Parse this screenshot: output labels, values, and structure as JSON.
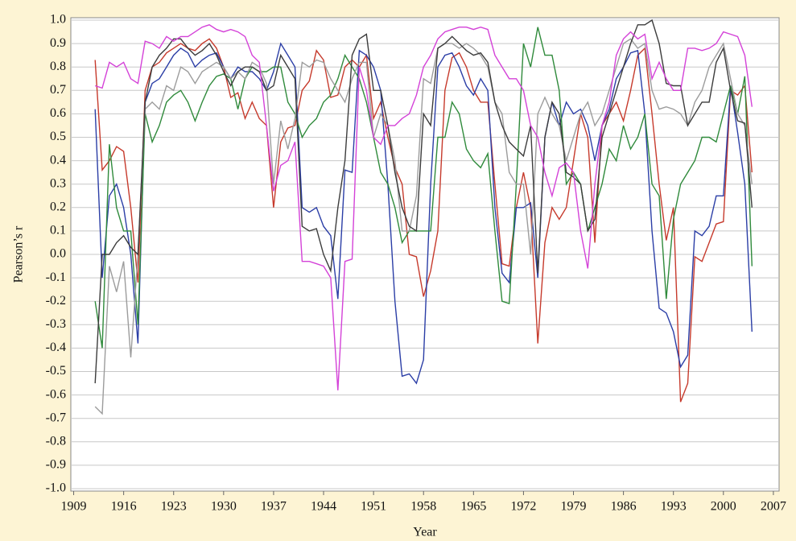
{
  "chart_data": {
    "type": "line",
    "x_label": "Year",
    "y_label": "Pearson’s r",
    "x": [
      1912,
      1913,
      1914,
      1915,
      1916,
      1917,
      1918,
      1919,
      1920,
      1921,
      1922,
      1923,
      1924,
      1925,
      1926,
      1927,
      1928,
      1929,
      1930,
      1931,
      1932,
      1933,
      1934,
      1935,
      1936,
      1937,
      1938,
      1939,
      1940,
      1941,
      1942,
      1943,
      1944,
      1945,
      1946,
      1947,
      1948,
      1949,
      1950,
      1951,
      1952,
      1953,
      1954,
      1955,
      1956,
      1957,
      1958,
      1959,
      1960,
      1961,
      1962,
      1963,
      1964,
      1965,
      1966,
      1967,
      1968,
      1969,
      1970,
      1971,
      1972,
      1973,
      1974,
      1975,
      1976,
      1977,
      1978,
      1979,
      1980,
      1981,
      1982,
      1983,
      1984,
      1985,
      1986,
      1987,
      1988,
      1989,
      1990,
      1991,
      1992,
      1993,
      1994,
      1995,
      1996,
      1997,
      1998,
      1999,
      2000,
      2001,
      2002,
      2003,
      2004
    ],
    "series": [
      {
        "color": "#c63a2c",
        "values": [
          0.83,
          0.36,
          0.4,
          0.46,
          0.44,
          0.2,
          -0.12,
          0.7,
          0.8,
          0.82,
          0.86,
          0.88,
          0.9,
          0.88,
          0.87,
          0.9,
          0.92,
          0.88,
          0.8,
          0.67,
          0.69,
          0.58,
          0.65,
          0.58,
          0.55,
          0.2,
          0.48,
          0.54,
          0.55,
          0.7,
          0.74,
          0.87,
          0.83,
          0.67,
          0.68,
          0.8,
          0.83,
          0.8,
          0.85,
          0.58,
          0.65,
          0.5,
          0.37,
          0.3,
          0.0,
          -0.01,
          -0.18,
          -0.07,
          0.1,
          0.7,
          0.84,
          0.86,
          0.8,
          0.7,
          0.65,
          0.65,
          0.3,
          -0.04,
          -0.05,
          0.2,
          0.35,
          0.2,
          -0.38,
          0.05,
          0.2,
          0.15,
          0.2,
          0.4,
          0.6,
          0.5,
          0.05,
          0.55,
          0.6,
          0.65,
          0.57,
          0.7,
          0.85,
          0.88,
          0.6,
          0.3,
          0.06,
          0.2,
          -0.63,
          -0.55,
          -0.01,
          -0.03,
          0.05,
          0.13,
          0.14,
          0.7,
          0.68,
          0.72,
          0.35
        ]
      },
      {
        "color": "#2b3ea6",
        "values": [
          0.62,
          -0.1,
          0.25,
          0.3,
          0.2,
          0.0,
          -0.38,
          0.65,
          0.73,
          0.75,
          0.8,
          0.85,
          0.88,
          0.86,
          0.8,
          0.83,
          0.85,
          0.86,
          0.8,
          0.75,
          0.8,
          0.78,
          0.78,
          0.75,
          0.7,
          0.78,
          0.9,
          0.85,
          0.8,
          0.2,
          0.18,
          0.2,
          0.12,
          0.08,
          -0.19,
          0.36,
          0.35,
          0.87,
          0.85,
          0.8,
          0.7,
          0.3,
          -0.2,
          -0.52,
          -0.51,
          -0.55,
          -0.45,
          0.3,
          0.8,
          0.85,
          0.86,
          0.8,
          0.72,
          0.68,
          0.75,
          0.7,
          0.2,
          -0.08,
          -0.12,
          0.2,
          0.2,
          0.22,
          -0.1,
          0.5,
          0.65,
          0.55,
          0.65,
          0.6,
          0.62,
          0.55,
          0.4,
          0.55,
          0.62,
          0.75,
          0.8,
          0.86,
          0.87,
          0.6,
          0.1,
          -0.23,
          -0.25,
          -0.33,
          -0.48,
          -0.43,
          0.1,
          0.08,
          0.12,
          0.25,
          0.25,
          0.72,
          0.52,
          0.3,
          -0.33
        ]
      },
      {
        "color": "#2f8a3b",
        "values": [
          -0.2,
          -0.4,
          0.47,
          0.2,
          0.1,
          0.1,
          -0.3,
          0.6,
          0.48,
          0.55,
          0.65,
          0.68,
          0.7,
          0.65,
          0.57,
          0.65,
          0.72,
          0.76,
          0.77,
          0.75,
          0.62,
          0.75,
          0.8,
          0.78,
          0.78,
          0.8,
          0.8,
          0.65,
          0.6,
          0.5,
          0.55,
          0.58,
          0.65,
          0.68,
          0.75,
          0.85,
          0.8,
          0.75,
          0.65,
          0.5,
          0.35,
          0.3,
          0.2,
          0.05,
          0.1,
          0.1,
          0.1,
          0.1,
          0.5,
          0.5,
          0.65,
          0.6,
          0.45,
          0.4,
          0.37,
          0.43,
          0.1,
          -0.2,
          -0.21,
          0.3,
          0.9,
          0.8,
          0.97,
          0.85,
          0.85,
          0.7,
          0.3,
          0.35,
          0.3,
          0.1,
          0.2,
          0.3,
          0.45,
          0.4,
          0.55,
          0.45,
          0.5,
          0.6,
          0.3,
          0.25,
          -0.19,
          0.15,
          0.3,
          0.35,
          0.4,
          0.5,
          0.5,
          0.48,
          0.6,
          0.72,
          0.6,
          0.76,
          -0.05
        ]
      },
      {
        "color": "#9c9c9c",
        "values": [
          -0.65,
          -0.68,
          -0.05,
          -0.16,
          -0.03,
          -0.44,
          0.0,
          0.62,
          0.65,
          0.62,
          0.72,
          0.7,
          0.8,
          0.78,
          0.73,
          0.78,
          0.8,
          0.82,
          0.8,
          0.75,
          0.78,
          0.75,
          0.82,
          0.8,
          0.73,
          0.3,
          0.57,
          0.45,
          0.58,
          0.82,
          0.8,
          0.83,
          0.82,
          0.75,
          0.7,
          0.65,
          0.75,
          0.82,
          0.82,
          0.5,
          0.6,
          0.55,
          0.4,
          0.1,
          0.1,
          0.25,
          0.75,
          0.73,
          0.88,
          0.9,
          0.9,
          0.88,
          0.9,
          0.88,
          0.85,
          0.8,
          0.65,
          0.6,
          0.35,
          0.3,
          0.3,
          0.0,
          0.6,
          0.67,
          0.6,
          0.55,
          0.4,
          0.5,
          0.6,
          0.65,
          0.55,
          0.6,
          0.7,
          0.8,
          0.9,
          0.92,
          0.88,
          0.9,
          0.7,
          0.62,
          0.63,
          0.62,
          0.6,
          0.55,
          0.65,
          0.7,
          0.8,
          0.85,
          0.9,
          0.75,
          0.6,
          0.55,
          0.3
        ]
      },
      {
        "color": "#3c3c3c",
        "values": [
          -0.55,
          0.0,
          0.0,
          0.05,
          0.08,
          0.03,
          0.0,
          0.65,
          0.8,
          0.85,
          0.88,
          0.92,
          0.92,
          0.88,
          0.85,
          0.87,
          0.9,
          0.85,
          0.78,
          0.72,
          0.78,
          0.8,
          0.8,
          0.78,
          0.7,
          0.72,
          0.85,
          0.8,
          0.75,
          0.12,
          0.1,
          0.11,
          0.0,
          -0.07,
          0.2,
          0.4,
          0.85,
          0.92,
          0.94,
          0.7,
          0.7,
          0.55,
          0.35,
          0.2,
          0.12,
          0.1,
          0.6,
          0.55,
          0.88,
          0.9,
          0.93,
          0.9,
          0.87,
          0.85,
          0.86,
          0.82,
          0.65,
          0.55,
          0.48,
          0.45,
          0.42,
          0.55,
          -0.08,
          0.5,
          0.65,
          0.6,
          0.35,
          0.33,
          0.3,
          0.1,
          0.15,
          0.5,
          0.6,
          0.7,
          0.8,
          0.9,
          0.98,
          0.98,
          1.0,
          0.9,
          0.73,
          0.72,
          0.72,
          0.55,
          0.6,
          0.65,
          0.65,
          0.82,
          0.88,
          0.7,
          0.57,
          0.56,
          0.2
        ]
      },
      {
        "color": "#d442d8",
        "values": [
          0.72,
          0.71,
          0.82,
          0.8,
          0.82,
          0.75,
          0.73,
          0.91,
          0.9,
          0.88,
          0.93,
          0.91,
          0.93,
          0.93,
          0.95,
          0.97,
          0.98,
          0.96,
          0.95,
          0.96,
          0.95,
          0.93,
          0.85,
          0.82,
          0.55,
          0.27,
          0.38,
          0.4,
          0.48,
          -0.03,
          -0.03,
          -0.04,
          -0.05,
          -0.1,
          -0.58,
          -0.03,
          -0.02,
          0.8,
          0.7,
          0.5,
          0.47,
          0.55,
          0.55,
          0.58,
          0.6,
          0.68,
          0.8,
          0.85,
          0.92,
          0.95,
          0.96,
          0.97,
          0.97,
          0.96,
          0.97,
          0.96,
          0.85,
          0.8,
          0.75,
          0.75,
          0.7,
          0.55,
          0.5,
          0.35,
          0.25,
          0.37,
          0.39,
          0.35,
          0.1,
          -0.06,
          0.3,
          0.55,
          0.65,
          0.85,
          0.92,
          0.95,
          0.92,
          0.94,
          0.75,
          0.82,
          0.75,
          0.7,
          0.7,
          0.88,
          0.88,
          0.87,
          0.88,
          0.9,
          0.95,
          0.94,
          0.93,
          0.85,
          0.63
        ]
      }
    ],
    "xlim": [
      1908.6,
      2007.8
    ],
    "xticks": [
      1909,
      1916,
      1923,
      1930,
      1937,
      1944,
      1951,
      1958,
      1965,
      1972,
      1979,
      1986,
      1993,
      2000,
      2007
    ],
    "ylim": [
      -1.0,
      1.0
    ],
    "yticks": [
      {
        "value": -1.0,
        "label": "-1.0"
      },
      -0.9,
      -0.8,
      -0.7,
      -0.6,
      -0.5,
      -0.4,
      -0.3,
      -0.2,
      -0.1,
      {
        "value": 0.0,
        "label": "0.0"
      },
      0.1,
      0.2,
      0.3,
      0.4,
      0.5,
      0.6,
      0.7,
      0.8,
      0.9,
      {
        "value": 1.0,
        "label": "1.0"
      }
    ],
    "grid": true
  }
}
